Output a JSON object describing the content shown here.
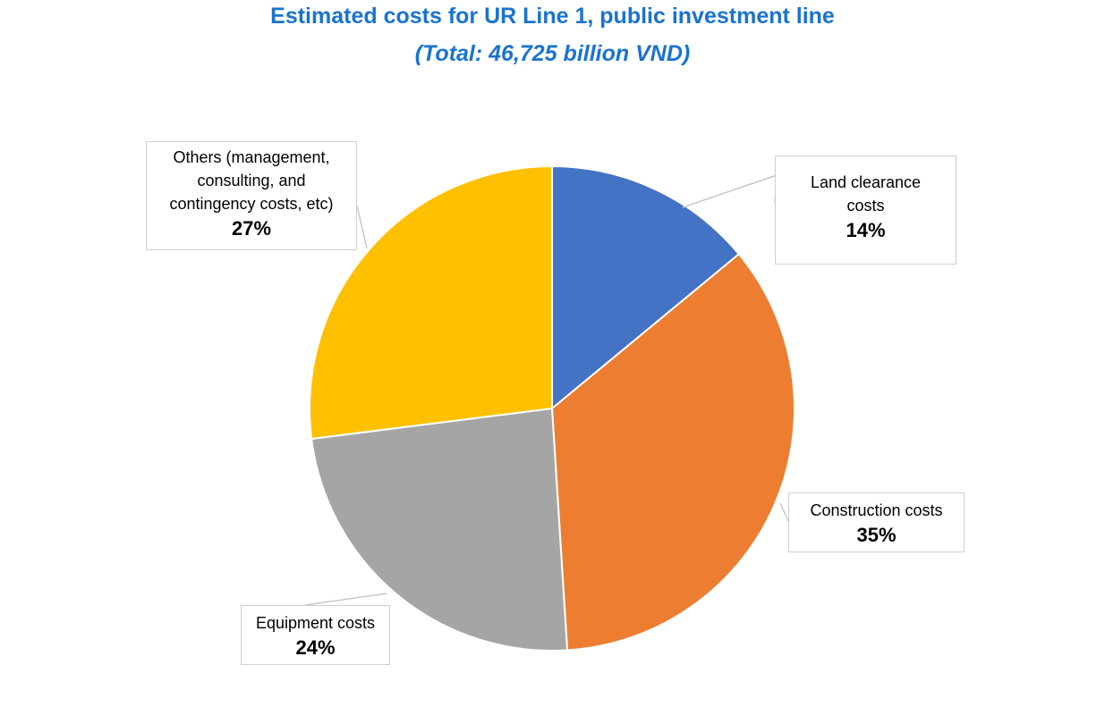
{
  "chart_data": {
    "type": "pie",
    "title": "Estimated costs for UR Line 1, public investment line",
    "subtitle": "(Total: 46,725 billion VND)",
    "slices": [
      {
        "label": "Land clearance costs",
        "value": 14,
        "value_label": "14%",
        "color": "#4472c4"
      },
      {
        "label": "Construction costs",
        "value": 35,
        "value_label": "35%",
        "color": "#ed7d31"
      },
      {
        "label": "Equipment costs",
        "value": 24,
        "value_label": "24%",
        "color": "#a5a5a5"
      },
      {
        "label": "Others (management, consulting, and contingency costs, etc)",
        "value": 27,
        "value_label": "27%",
        "color": "#ffc000"
      }
    ],
    "start": "top, clockwise",
    "legend": "none"
  }
}
